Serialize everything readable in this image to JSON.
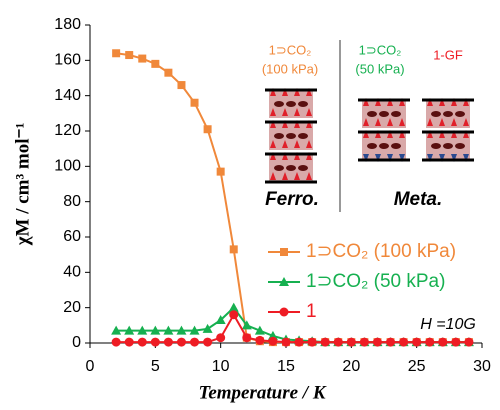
{
  "chart_data": {
    "type": "line",
    "xlabel": "Temperature / K",
    "ylabel": "χM / cm³ mol⁻¹",
    "x": [
      2,
      3,
      4,
      5,
      6,
      7,
      8,
      9,
      10,
      11,
      12,
      13,
      14,
      15,
      16,
      17,
      18,
      19,
      20,
      21,
      22,
      23,
      24,
      25,
      26,
      27,
      28,
      29
    ],
    "series": [
      {
        "name": "1⊃CO₂ (100 kPa)",
        "color": "#f0883a",
        "marker": "square",
        "values": [
          164,
          163,
          161,
          158,
          153,
          146,
          136,
          121,
          97,
          53,
          3,
          1,
          0.5,
          0.5,
          0.5,
          0.5,
          0.5,
          0.5,
          0.5,
          0.5,
          0.5,
          0.5,
          0.5,
          0.5,
          0.5,
          0.5,
          0.5,
          0.5
        ]
      },
      {
        "name": "1⊃CO₂ (50 kPa)",
        "color": "#16b050",
        "marker": "triangle",
        "values": [
          7,
          7,
          7,
          7,
          7,
          7,
          7,
          8,
          13,
          20,
          10,
          7,
          4,
          2,
          1.5,
          1,
          0.5,
          0.5,
          0.5,
          0.5,
          0.5,
          0.5,
          0.5,
          0.5,
          0.5,
          0.5,
          0.5,
          0.5
        ]
      },
      {
        "name": "1",
        "color": "#ee1c24",
        "marker": "circle",
        "values": [
          0.5,
          0.5,
          0.5,
          0.5,
          0.5,
          0.5,
          0.5,
          0.5,
          3,
          16,
          3,
          1.5,
          1,
          0.5,
          0.5,
          0.5,
          0.5,
          0.5,
          0.5,
          0.5,
          0.5,
          0.5,
          0.5,
          0.5,
          0.5,
          0.5,
          0.5,
          0.5
        ]
      }
    ],
    "xlim": [
      0,
      30
    ],
    "xticks": [
      0,
      5,
      10,
      15,
      20,
      25,
      30
    ],
    "ylim": [
      0,
      180
    ],
    "yticks": [
      0,
      20,
      40,
      60,
      80,
      100,
      120,
      140,
      160,
      180
    ],
    "annotations": [
      "H =10G",
      "1⊃CO₂",
      "(100 kPa)",
      "1⊃CO₂",
      "(50 kPa)",
      "1-GF",
      "Ferro.",
      "Meta."
    ]
  }
}
